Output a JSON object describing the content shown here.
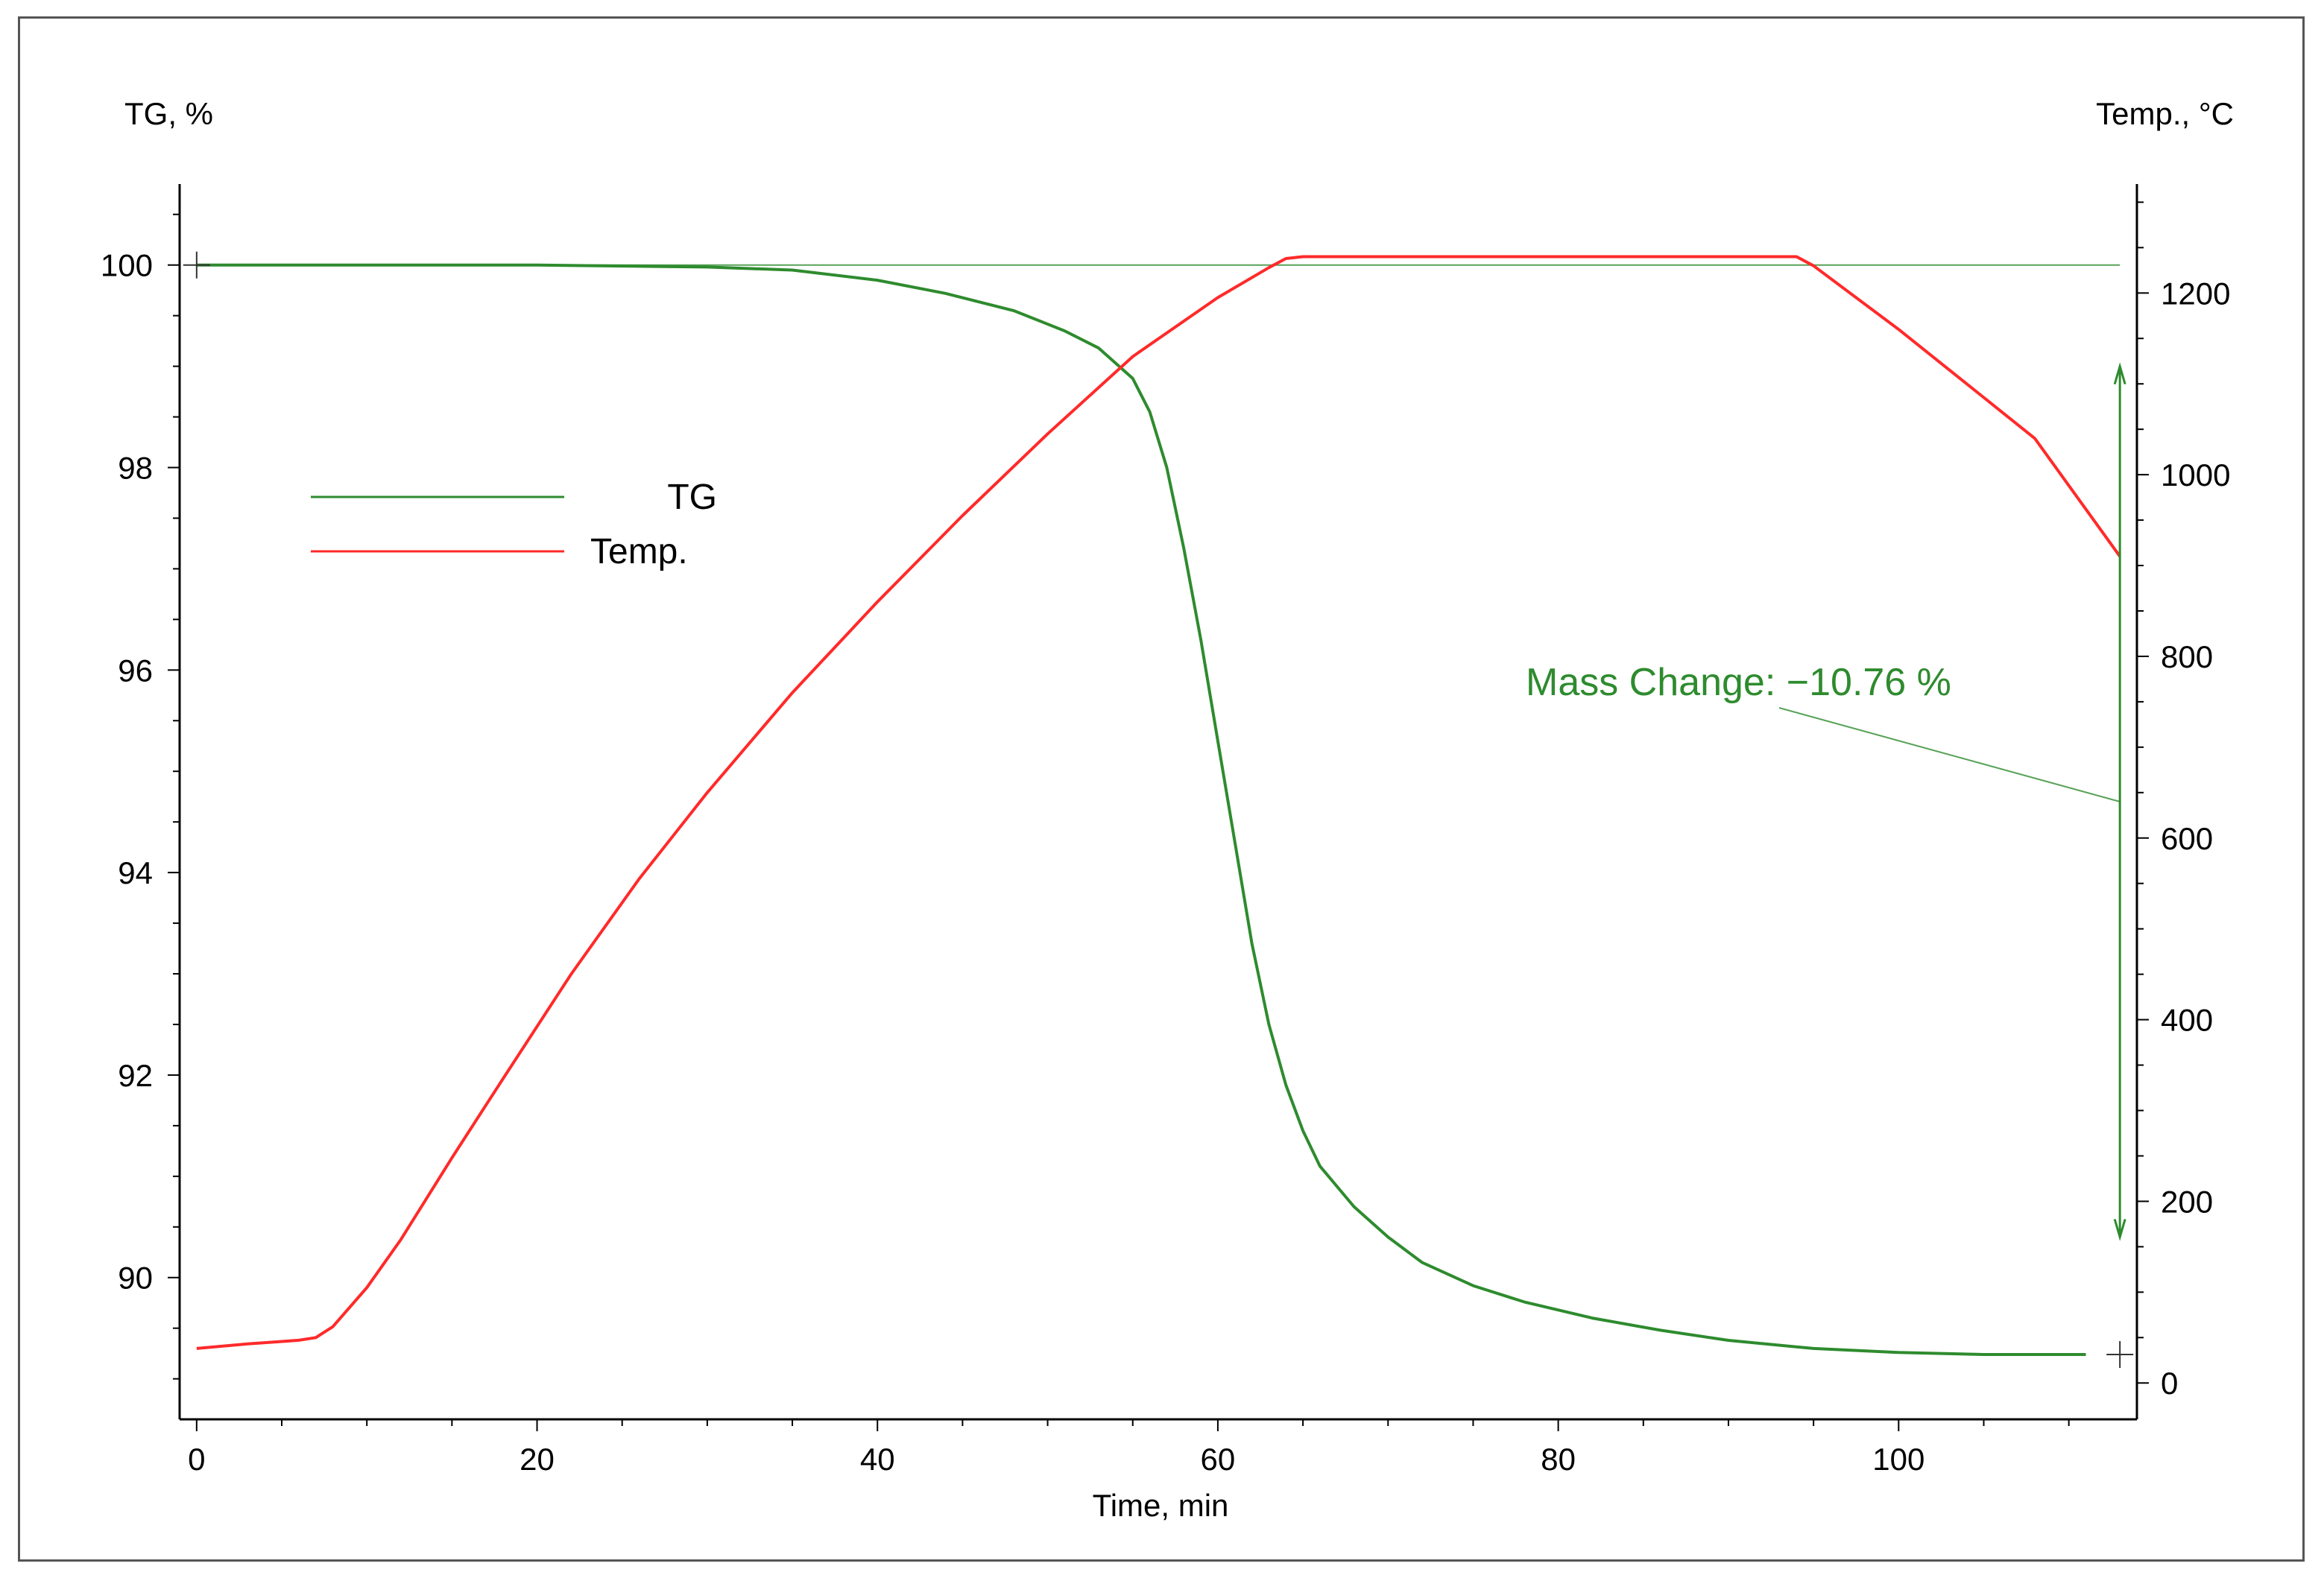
{
  "chart_data": {
    "type": "line",
    "title": "",
    "xlabel": "Time, min",
    "ylabel_left": "TG, %",
    "ylabel_right": "Temp., °C",
    "xlim": [
      -1,
      114
    ],
    "ylim_left": [
      88.6,
      100.8
    ],
    "ylim_right": [
      -40,
      1320
    ],
    "x_ticks": [
      0,
      20,
      40,
      60,
      80,
      100
    ],
    "y_left_ticks": [
      90,
      92,
      94,
      96,
      98,
      100
    ],
    "y_right_ticks": [
      0,
      200,
      400,
      600,
      800,
      1000,
      1200
    ],
    "grid": false,
    "legend_position": "upper-left",
    "colors": {
      "tg": "#2e8b2e",
      "temp": "#ff2a2a",
      "annotation": "#2e8b2e",
      "axis": "#000000"
    },
    "series": [
      {
        "name": "TG",
        "axis": "left",
        "color": "#2e8b2e",
        "points": [
          [
            0,
            100.0
          ],
          [
            10,
            100.0
          ],
          [
            20,
            100.0
          ],
          [
            30,
            99.98
          ],
          [
            35,
            99.95
          ],
          [
            40,
            99.85
          ],
          [
            44,
            99.72
          ],
          [
            48,
            99.55
          ],
          [
            51,
            99.35
          ],
          [
            53,
            99.18
          ],
          [
            55,
            98.88
          ],
          [
            56,
            98.55
          ],
          [
            57,
            98.0
          ],
          [
            58,
            97.2
          ],
          [
            59,
            96.3
          ],
          [
            60,
            95.3
          ],
          [
            61,
            94.3
          ],
          [
            62,
            93.3
          ],
          [
            63,
            92.5
          ],
          [
            64,
            91.9
          ],
          [
            65,
            91.45
          ],
          [
            66,
            91.1
          ],
          [
            68,
            90.7
          ],
          [
            70,
            90.4
          ],
          [
            72,
            90.15
          ],
          [
            75,
            89.92
          ],
          [
            78,
            89.76
          ],
          [
            82,
            89.6
          ],
          [
            86,
            89.48
          ],
          [
            90,
            89.38
          ],
          [
            95,
            89.3
          ],
          [
            100,
            89.26
          ],
          [
            105,
            89.24
          ],
          [
            111,
            89.24
          ]
        ]
      },
      {
        "name": "Temp.",
        "axis": "right",
        "color": "#ff2a2a",
        "points": [
          [
            0,
            38
          ],
          [
            3,
            43
          ],
          [
            6,
            47
          ],
          [
            7,
            50
          ],
          [
            8,
            62
          ],
          [
            10,
            105
          ],
          [
            12,
            158
          ],
          [
            15,
            248
          ],
          [
            18,
            335
          ],
          [
            22,
            450
          ],
          [
            26,
            555
          ],
          [
            30,
            650
          ],
          [
            35,
            760
          ],
          [
            40,
            860
          ],
          [
            45,
            955
          ],
          [
            50,
            1045
          ],
          [
            55,
            1130
          ],
          [
            60,
            1195
          ],
          [
            63,
            1228
          ],
          [
            64,
            1238
          ],
          [
            65,
            1240
          ],
          [
            80,
            1240
          ],
          [
            94,
            1240
          ],
          [
            95,
            1230
          ],
          [
            100,
            1160
          ],
          [
            105,
            1085
          ],
          [
            108,
            1040
          ],
          [
            113,
            910
          ]
        ]
      }
    ],
    "annotation": {
      "label": "Mass Change:",
      "value": "-10.76 %",
      "display": "Mass Change: −10.76 %",
      "x": 113,
      "y_top": 99.0,
      "y_bottom": 90.4
    },
    "reference_line": {
      "axis": "left",
      "y": 100.0
    },
    "markers": [
      {
        "x": 0,
        "y": 100.0
      },
      {
        "x": 113,
        "y": 89.24
      }
    ]
  }
}
